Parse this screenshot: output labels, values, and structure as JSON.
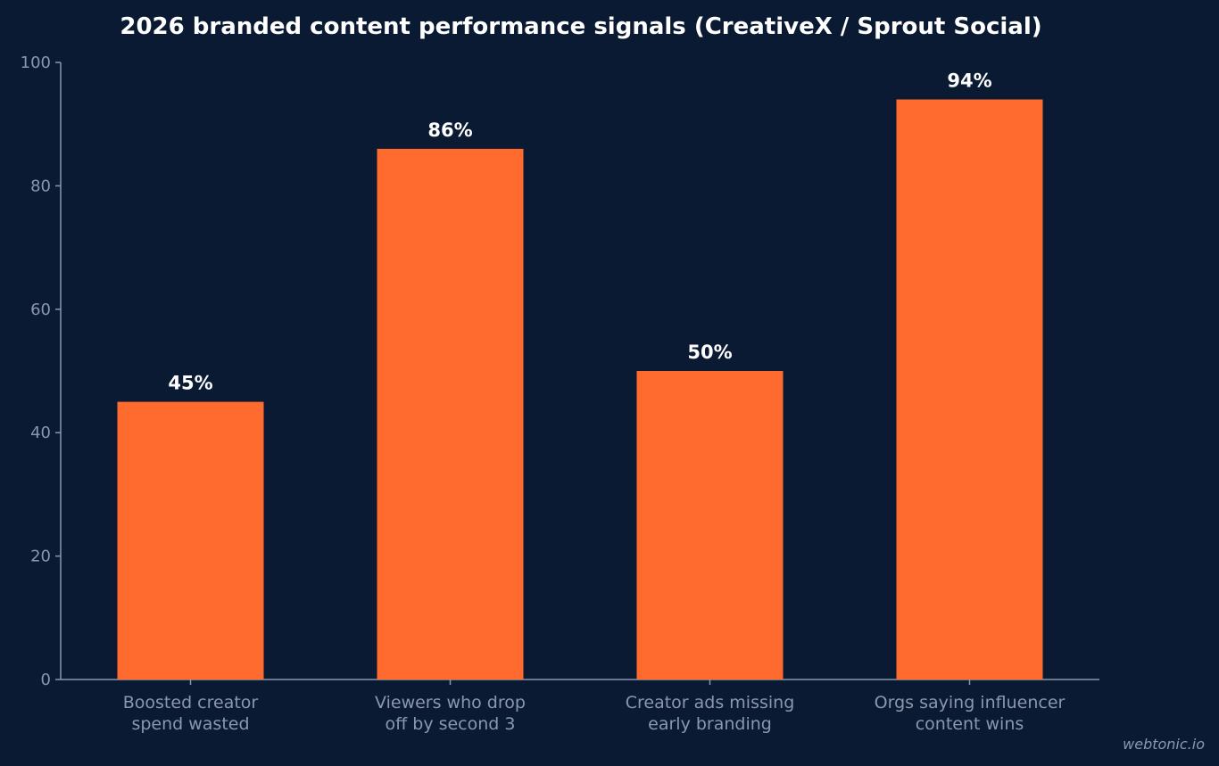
{
  "chart_data": {
    "type": "bar",
    "title": "2026 branded content performance signals (CreativeX / Sprout Social)",
    "categories": [
      [
        "Boosted creator",
        "spend wasted"
      ],
      [
        "Viewers who drop",
        "off by second 3"
      ],
      [
        "Creator ads missing",
        "early branding"
      ],
      [
        "Orgs saying influencer",
        "content wins"
      ]
    ],
    "values": [
      45,
      86,
      50,
      94
    ],
    "value_labels": [
      "45%",
      "86%",
      "50%",
      "94%"
    ],
    "ylim": [
      0,
      100
    ],
    "yticks": [
      0,
      20,
      40,
      60,
      80,
      100
    ],
    "xlabel": "",
    "ylabel": "",
    "grid": false,
    "colors": {
      "background": "#0b1a33",
      "bar": "#ff6b2e",
      "axis": "#8a97ad",
      "text": "#ffffff"
    }
  },
  "watermark": "webtonic.io"
}
